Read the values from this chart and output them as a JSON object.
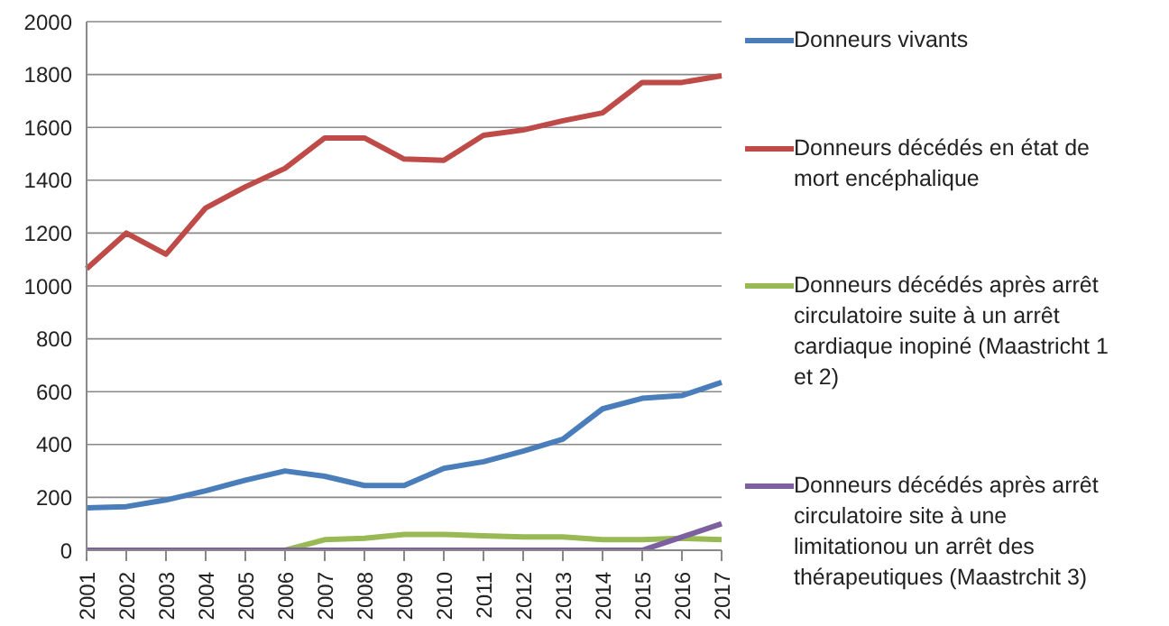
{
  "chart_data": {
    "type": "line",
    "categories": [
      "2001",
      "2002",
      "2003",
      "2004",
      "2005",
      "2006",
      "2007",
      "2008",
      "2009",
      "2010",
      "2011",
      "2012",
      "2013",
      "2014",
      "2015",
      "2016",
      "2017"
    ],
    "series": [
      {
        "name": "Donneurs vivants",
        "color": "#4a7ebb",
        "values": [
          160,
          165,
          190,
          225,
          265,
          300,
          280,
          245,
          245,
          310,
          335,
          375,
          420,
          535,
          575,
          585,
          635
        ]
      },
      {
        "name": "Donneurs décédés en état de mort encéphalique",
        "color": "#be4b48",
        "values": [
          1065,
          1200,
          1120,
          1295,
          1375,
          1445,
          1560,
          1560,
          1480,
          1475,
          1570,
          1590,
          1625,
          1655,
          1770,
          1770,
          1795
        ]
      },
      {
        "name": "Donneurs décédés après arrêt circulatoire suite à un arrêt cardiaque inopiné (Maastricht 1 et 2)",
        "color": "#98b954",
        "values": [
          null,
          null,
          null,
          null,
          null,
          0,
          40,
          45,
          60,
          60,
          55,
          50,
          50,
          40,
          40,
          45,
          40
        ]
      },
      {
        "name": "Donneurs décédés après arrêt circulatoire site à une limitationou un arrêt des thérapeutiques (Maastrchit 3)",
        "color": "#7d60a0",
        "values": [
          0,
          0,
          0,
          0,
          0,
          0,
          0,
          0,
          0,
          0,
          0,
          0,
          0,
          0,
          0,
          50,
          100
        ]
      }
    ],
    "ylim": [
      0,
      2000
    ],
    "yticks": [
      0,
      200,
      400,
      600,
      800,
      1000,
      1200,
      1400,
      1600,
      1800,
      2000
    ],
    "grid": "y",
    "legend": "right",
    "marker": "none",
    "line_style": "solid"
  }
}
